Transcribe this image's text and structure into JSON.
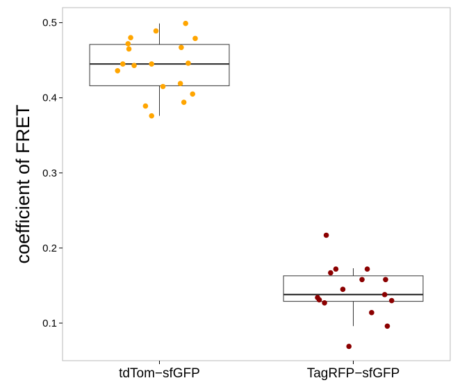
{
  "chart_data": {
    "type": "boxplot",
    "title": "",
    "xlabel": "",
    "ylabel": "coefficient of FRET",
    "ylim": [
      0.05,
      0.52
    ],
    "yticks": [
      "0.1",
      "0.2",
      "0.3",
      "0.4",
      "0.5"
    ],
    "grid": false,
    "legend": "none",
    "categories": [
      "tdTom−sfGFP",
      "TagRFP−sfGFP"
    ],
    "groups": [
      {
        "category": "tdTom−sfGFP",
        "color": "#ffa500",
        "box": {
          "whisker_low": 0.376,
          "q1": 0.416,
          "median": 0.445,
          "q3": 0.471,
          "whisker_high": 0.499
        },
        "points": [
          {
            "jitter": -0.48,
            "value": 0.436
          },
          {
            "jitter": -0.42,
            "value": 0.445
          },
          {
            "jitter": -0.36,
            "value": 0.472
          },
          {
            "jitter": -0.35,
            "value": 0.465
          },
          {
            "jitter": -0.33,
            "value": 0.48
          },
          {
            "jitter": -0.29,
            "value": 0.443
          },
          {
            "jitter": -0.16,
            "value": 0.389
          },
          {
            "jitter": -0.09,
            "value": 0.376
          },
          {
            "jitter": -0.09,
            "value": 0.445
          },
          {
            "jitter": -0.04,
            "value": 0.489
          },
          {
            "jitter": 0.04,
            "value": 0.415
          },
          {
            "jitter": 0.24,
            "value": 0.419
          },
          {
            "jitter": 0.25,
            "value": 0.467
          },
          {
            "jitter": 0.28,
            "value": 0.394
          },
          {
            "jitter": 0.3,
            "value": 0.499
          },
          {
            "jitter": 0.33,
            "value": 0.446
          },
          {
            "jitter": 0.38,
            "value": 0.405
          },
          {
            "jitter": 0.41,
            "value": 0.479
          }
        ]
      },
      {
        "category": "TagRFP−sfGFP",
        "color": "#8b0000",
        "box": {
          "whisker_low": 0.096,
          "q1": 0.129,
          "median": 0.138,
          "q3": 0.163,
          "whisker_high": 0.173
        },
        "points": [
          {
            "jitter": -0.41,
            "value": 0.134
          },
          {
            "jitter": -0.39,
            "value": 0.131
          },
          {
            "jitter": -0.33,
            "value": 0.127
          },
          {
            "jitter": -0.31,
            "value": 0.217
          },
          {
            "jitter": -0.26,
            "value": 0.167
          },
          {
            "jitter": -0.2,
            "value": 0.172
          },
          {
            "jitter": -0.12,
            "value": 0.145
          },
          {
            "jitter": -0.05,
            "value": 0.069
          },
          {
            "jitter": 0.1,
            "value": 0.158
          },
          {
            "jitter": 0.16,
            "value": 0.172
          },
          {
            "jitter": 0.21,
            "value": 0.114
          },
          {
            "jitter": 0.36,
            "value": 0.138
          },
          {
            "jitter": 0.37,
            "value": 0.158
          },
          {
            "jitter": 0.39,
            "value": 0.096
          },
          {
            "jitter": 0.44,
            "value": 0.13
          }
        ]
      }
    ]
  }
}
